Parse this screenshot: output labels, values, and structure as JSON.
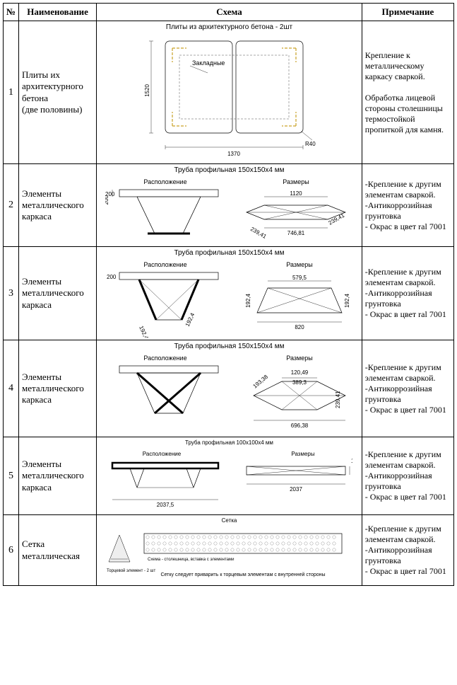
{
  "headers": {
    "num": "№",
    "name": "Наименование",
    "schema": "Схема",
    "note": "Примечание"
  },
  "row1": {
    "num": "1",
    "name": "Плиты их архитектурного бетона\n(две половины)",
    "title": "Плиты из архитектурного бетона - 2шт",
    "embed_label": "Закладные",
    "dim_w": "1370",
    "dim_h": "1520",
    "radius": "R40",
    "note": "Крепление к металлическому каркасу сваркой.\n\nОбработка лицевой стороны столешницы термостойкой пропиткой для камня."
  },
  "row2": {
    "num": "2",
    "name": "Элементы металлического каркаса",
    "title": "Труба профильная 150х150х4 мм",
    "sub_left": "Расположение",
    "sub_right": "Размеры",
    "dim_200": "200",
    "dim_1120": "1120",
    "dim_746": "746,81",
    "dim_239": "239,41",
    "note": "-Крепление к другим элементам сваркой.\n-Антикоррозийная грунтовка\n- Окрас в цвет ral 7001"
  },
  "row3": {
    "num": "3",
    "name": "Элементы металлического каркаса",
    "title": "Труба профильная 150х150х4 мм",
    "sub_left": "Расположение",
    "sub_right": "Размеры",
    "dim_200": "200",
    "dim_192l": "192,4",
    "dim_192r": "192,4",
    "dim_579": "579,5",
    "dim_820": "820",
    "dim_side": "192,4",
    "note": "-Крепление к другим элементам сваркой.\n-Антикоррозийная грунтовка\n- Окрас в цвет ral 7001"
  },
  "row4": {
    "num": "4",
    "name": "Элементы металлического каркаса",
    "title": "Труба профильная 150х150х4 мм",
    "sub_left": "Расположение",
    "sub_right": "Размеры",
    "dim_120": "120,49",
    "dim_389": "389,3",
    "dim_696": "696,38",
    "dim_193": "193,38",
    "dim_239": "239,41",
    "note": "-Крепление к другим элементам сваркой.\n-Антикоррозийная грунтовка\n- Окрас в цвет ral 7001"
  },
  "row5": {
    "num": "5",
    "name": "Элементы металлического каркаса",
    "title": "Труба профильная 100х100х4 мм",
    "sub_left": "Расположение",
    "sub_right": "Размеры",
    "dim_2037b": "2037,5",
    "dim_2037": "2037",
    "dim_100": "100",
    "note": "-Крепление к другим элементам сваркой.\n-Антикоррозийная грунтовка\n- Окрас в цвет ral 7001"
  },
  "row6": {
    "num": "6",
    "name": "Сетка металлическая",
    "title": "Сетка",
    "caption": "Сетку следует приварить к торцевым элементам с внутренней стороны",
    "side_label": "Торцевой элемент - 2 шт",
    "model_label": "Схема - столешница, вставка с элементами",
    "note": "-Крепление к другим элементам сваркой.\n-Антикоррозийная грунтовка\n- Окрас в цвет ral 7001"
  }
}
